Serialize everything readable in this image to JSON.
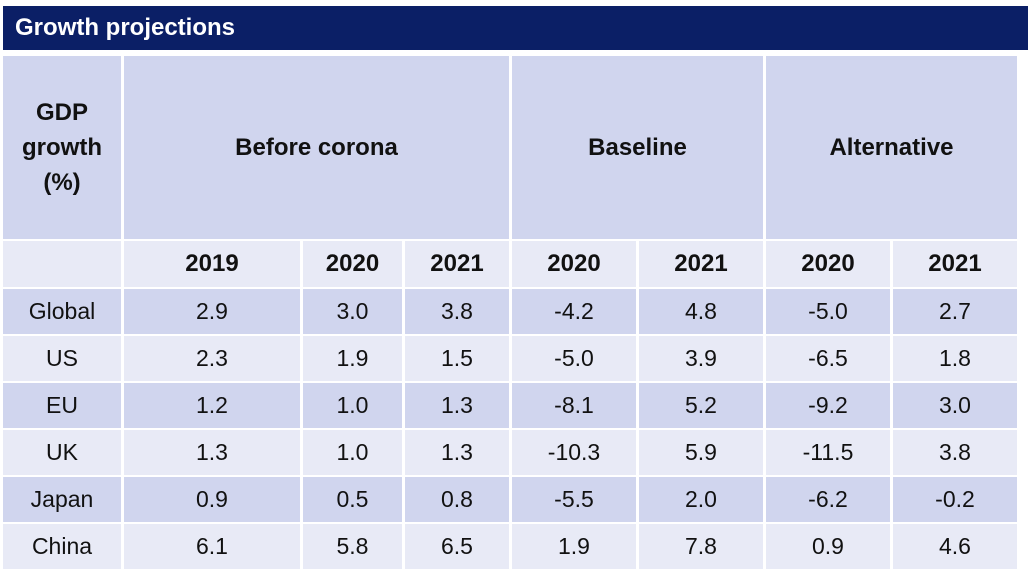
{
  "title": "Growth projections",
  "header": {
    "row_label": "GDP growth (%)",
    "groups": [
      "Before corona",
      "Baseline",
      "Alternative"
    ],
    "years": [
      "2019",
      "2020",
      "2021",
      "2020",
      "2021",
      "2020",
      "2021"
    ]
  },
  "rows": [
    {
      "region": "Global",
      "values": [
        "2.9",
        "3.0",
        "3.8",
        "-4.2",
        "4.8",
        "-5.0",
        "2.7"
      ]
    },
    {
      "region": "US",
      "values": [
        "2.3",
        "1.9",
        "1.5",
        "-5.0",
        "3.9",
        "-6.5",
        "1.8"
      ]
    },
    {
      "region": "EU",
      "values": [
        "1.2",
        "1.0",
        "1.3",
        "-8.1",
        "5.2",
        "-9.2",
        "3.0"
      ]
    },
    {
      "region": "UK",
      "values": [
        "1.3",
        "1.0",
        "1.3",
        "-10.3",
        "5.9",
        "-11.5",
        "3.8"
      ]
    },
    {
      "region": "Japan",
      "values": [
        "0.9",
        "0.5",
        "0.8",
        "-5.5",
        "2.0",
        "-6.2",
        "-0.2"
      ]
    },
    {
      "region": "China",
      "values": [
        "6.1",
        "5.8",
        "6.5",
        "1.9",
        "7.8",
        "0.9",
        "4.6"
      ]
    }
  ],
  "colors": {
    "title_bg": "#0b1f66",
    "header_bg": "#d0d5ee",
    "row_dark": "#d0d5ee",
    "row_light": "#e8eaf6"
  }
}
